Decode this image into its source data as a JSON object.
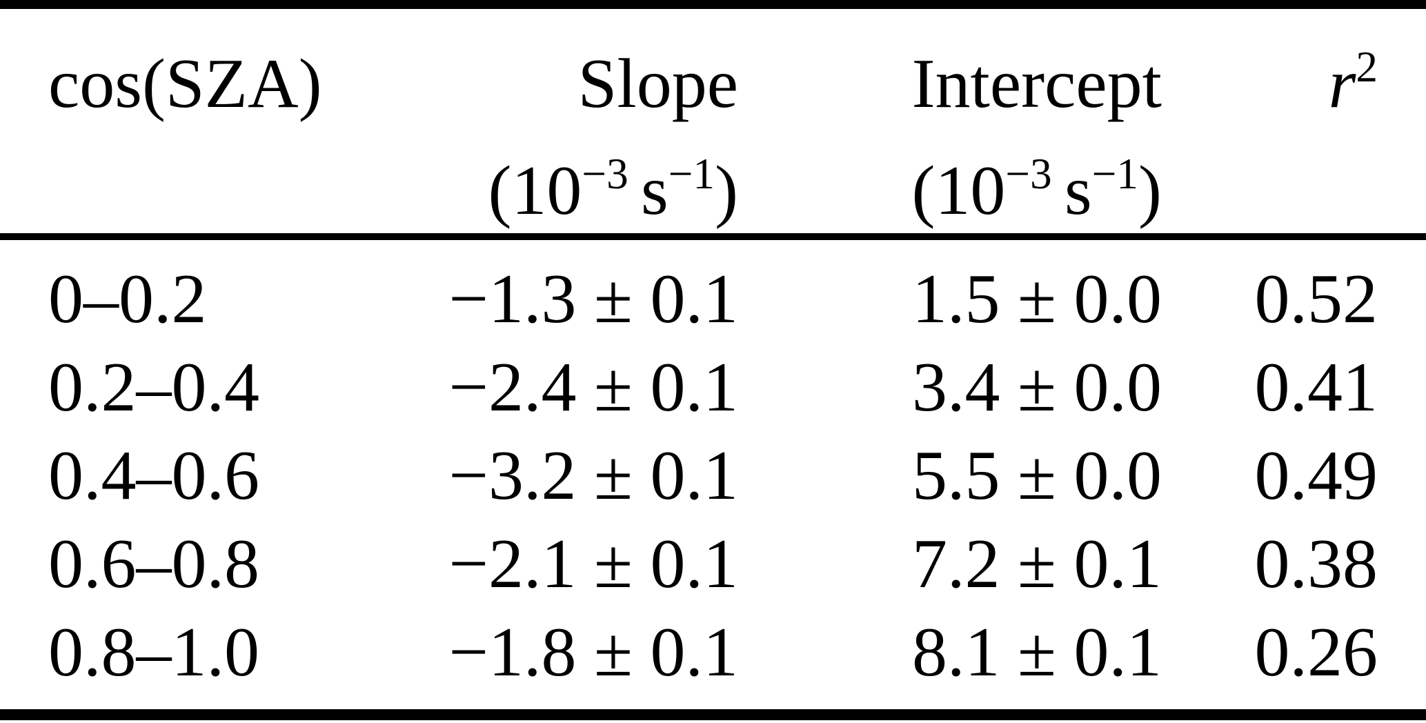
{
  "table": {
    "headers": {
      "cos_sza": "cos(SZA)",
      "slope_label": "Slope",
      "intercept_label": "Intercept",
      "r2_base": "r",
      "r2_exp": "2",
      "unit_open": "(10",
      "unit_exp1": "−3",
      "unit_s": "s",
      "unit_exp2": "−1",
      "unit_close": ")"
    },
    "rows": [
      {
        "cos_sza": "0–0.2",
        "slope": "−1.3 ± 0.1",
        "intercept": "1.5 ± 0.0",
        "r2": "0.52"
      },
      {
        "cos_sza": "0.2–0.4",
        "slope": "−2.4 ± 0.1",
        "intercept": "3.4 ± 0.0",
        "r2": "0.41"
      },
      {
        "cos_sza": "0.4–0.6",
        "slope": "−3.2 ± 0.1",
        "intercept": "5.5 ± 0.0",
        "r2": "0.49"
      },
      {
        "cos_sza": "0.6–0.8",
        "slope": "−2.1 ± 0.1",
        "intercept": "7.2 ± 0.1",
        "r2": "0.38"
      },
      {
        "cos_sza": "0.8–1.0",
        "slope": "−1.8 ± 0.1",
        "intercept": "8.1 ± 0.1",
        "r2": "0.26"
      }
    ],
    "colors": {
      "text": "#000000",
      "rule": "#000000",
      "background": "#ffffff"
    }
  },
  "chart_data": {
    "type": "table",
    "columns": [
      "cos(SZA)",
      "Slope (10^-3 s^-1)",
      "Intercept (10^-3 s^-1)",
      "r^2"
    ],
    "rows": [
      [
        "0–0.2",
        "−1.3 ± 0.1",
        "1.5 ± 0.0",
        "0.52"
      ],
      [
        "0.2–0.4",
        "−2.4 ± 0.1",
        "3.4 ± 0.0",
        "0.41"
      ],
      [
        "0.4–0.6",
        "−3.2 ± 0.1",
        "5.5 ± 0.0",
        "0.49"
      ],
      [
        "0.6–0.8",
        "−2.1 ± 0.1",
        "7.2 ± 0.1",
        "0.38"
      ],
      [
        "0.8–1.0",
        "−1.8 ± 0.1",
        "8.1 ± 0.1",
        "0.26"
      ]
    ]
  }
}
